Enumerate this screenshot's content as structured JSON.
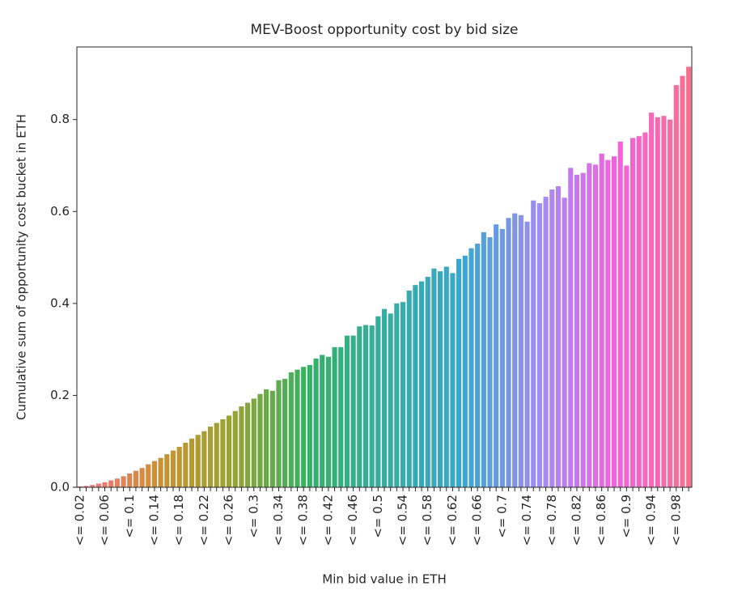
{
  "chart_data": {
    "type": "bar",
    "title": "MEV-Boost opportunity cost by bid size",
    "x_label": "Min bid value in ETH",
    "y_label": "Cumulative sum of opportunity cost bucket in ETH",
    "categories": [
      "<= 0.02",
      null,
      null,
      null,
      "<= 0.06",
      null,
      null,
      null,
      "<= 0.1",
      null,
      null,
      null,
      "<= 0.14",
      null,
      null,
      null,
      "<= 0.18",
      null,
      null,
      null,
      "<= 0.22",
      null,
      null,
      null,
      "<= 0.26",
      null,
      null,
      null,
      "<= 0.3",
      null,
      null,
      null,
      "<= 0.34",
      null,
      null,
      null,
      "<= 0.38",
      null,
      null,
      null,
      "<= 0.42",
      null,
      null,
      null,
      "<= 0.46",
      null,
      null,
      null,
      "<= 0.5",
      null,
      null,
      null,
      "<= 0.54",
      null,
      null,
      null,
      "<= 0.58",
      null,
      null,
      null,
      "<= 0.62",
      null,
      null,
      null,
      "<= 0.66",
      null,
      null,
      null,
      "<= 0.7",
      null,
      null,
      null,
      "<= 0.74",
      null,
      null,
      null,
      "<= 0.78",
      null,
      null,
      null,
      "<= 0.82",
      null,
      null,
      null,
      "<= 0.86",
      null,
      null,
      null,
      "<= 0.9",
      null,
      null,
      null,
      "<= 0.94",
      null,
      null,
      null,
      "<= 0.98",
      null,
      null
    ],
    "values": [
      0.002,
      0.003,
      0.005,
      0.008,
      0.011,
      0.015,
      0.019,
      0.024,
      0.03,
      0.036,
      0.042,
      0.05,
      0.057,
      0.064,
      0.072,
      0.08,
      0.088,
      0.097,
      0.106,
      0.114,
      0.122,
      0.132,
      0.14,
      0.148,
      0.156,
      0.166,
      0.176,
      0.184,
      0.193,
      0.203,
      0.213,
      0.21,
      0.233,
      0.236,
      0.25,
      0.256,
      0.262,
      0.266,
      0.28,
      0.288,
      0.284,
      0.305,
      0.305,
      0.33,
      0.33,
      0.35,
      0.353,
      0.352,
      0.372,
      0.388,
      0.378,
      0.4,
      0.403,
      0.428,
      0.44,
      0.448,
      0.458,
      0.476,
      0.47,
      0.48,
      0.466,
      0.497,
      0.504,
      0.52,
      0.53,
      0.555,
      0.544,
      0.572,
      0.562,
      0.586,
      0.596,
      0.592,
      0.578,
      0.624,
      0.618,
      0.632,
      0.648,
      0.655,
      0.63,
      0.695,
      0.68,
      0.684,
      0.705,
      0.702,
      0.726,
      0.712,
      0.72,
      0.752,
      0.7,
      0.76,
      0.764,
      0.772,
      0.815,
      0.805,
      0.808,
      0.8,
      0.875,
      0.895,
      0.915
    ],
    "palette": [
      "#f77189",
      "#ce9032",
      "#97a431",
      "#32b166",
      "#36ada4",
      "#39a7d0",
      "#a48cf4",
      "#f561dd"
    ],
    "ylim": [
      0,
      0.958
    ],
    "yticks": [
      {
        "value": 0,
        "label": "0.0"
      },
      0.2,
      0.4,
      0.6,
      0.8
    ]
  }
}
